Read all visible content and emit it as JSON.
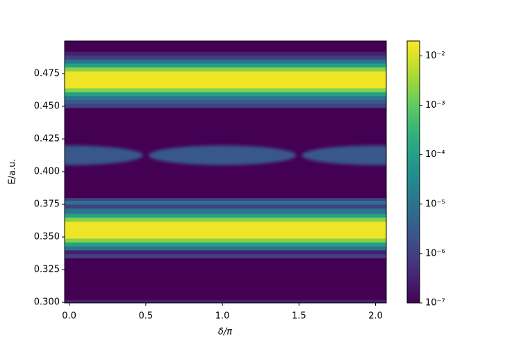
{
  "chart_data": {
    "type": "heatmap",
    "xlabel": "δ/π",
    "ylabel": "E/a.u.",
    "xlim": [
      -0.03,
      2.07
    ],
    "ylim": [
      0.2995,
      0.5
    ],
    "xticks": [
      {
        "value": 0,
        "label": "0.0"
      },
      {
        "value": 0.5,
        "label": "0.5"
      },
      {
        "value": 1,
        "label": "1.0"
      },
      {
        "value": 1.5,
        "label": "1.5"
      },
      {
        "value": 2,
        "label": "2.0"
      }
    ],
    "yticks": [
      {
        "value": 0.3,
        "label": "0.300"
      },
      {
        "value": 0.325,
        "label": "0.325"
      },
      {
        "value": 0.35,
        "label": "0.350"
      },
      {
        "value": 0.375,
        "label": "0.375"
      },
      {
        "value": 0.4,
        "label": "0.400"
      },
      {
        "value": 0.425,
        "label": "0.425"
      },
      {
        "value": 0.45,
        "label": "0.450"
      },
      {
        "value": 0.475,
        "label": "0.475"
      }
    ],
    "colormap": "viridis",
    "color_scale": "log",
    "clim": [
      1e-07,
      0.02
    ],
    "cticks": [
      {
        "value": 1e-07,
        "label": "10⁻⁷"
      },
      {
        "value": 1e-06,
        "label": "10⁻⁶"
      },
      {
        "value": 1e-05,
        "label": "10⁻⁵"
      },
      {
        "value": 0.0001,
        "label": "10⁻⁴"
      },
      {
        "value": 0.001,
        "label": "10⁻³"
      },
      {
        "value": 0.01,
        "label": "10⁻²"
      }
    ],
    "row_edges": [
      0.2995,
      0.302,
      0.334,
      0.337,
      0.34,
      0.343,
      0.346,
      0.349,
      0.362,
      0.365,
      0.368,
      0.372,
      0.375,
      0.378,
      0.38,
      0.449,
      0.452,
      0.455,
      0.458,
      0.461,
      0.464,
      0.477,
      0.48,
      0.483,
      0.486,
      0.489,
      0.492,
      0.5
    ],
    "row_values": [
      3e-07,
      1e-07,
      1e-06,
      3e-07,
      1e-05,
      0.0001,
      0.002,
      0.015,
      0.002,
      0.0001,
      1e-05,
      1e-06,
      1e-05,
      1e-06,
      1e-07,
      1e-06,
      3e-06,
      1e-05,
      0.0001,
      0.002,
      0.015,
      0.002,
      0.0001,
      1e-05,
      1e-06,
      3e-07,
      1e-07
    ],
    "lobe_x": [
      0,
      1,
      2
    ],
    "lobe_halfwidth": 0.5,
    "lobe_y": [
      0.405,
      0.42
    ],
    "lobe_value": 3e-06
  }
}
